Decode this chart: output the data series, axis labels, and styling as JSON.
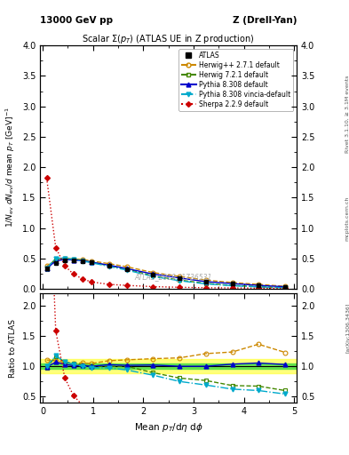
{
  "title_left": "13000 GeV pp",
  "title_right": "Z (Drell-Yan)",
  "plot_title": "Scalar Σ(p_T) (ATLAS UE in Z production)",
  "ylabel_main": "1/N_{ev} dN_{ev}/d mean p_T [GeV]^{-1}",
  "ylabel_ratio": "Ratio to ATLAS",
  "xlabel": "Mean p_T/dη dφ",
  "watermark": "ATLAS_2019_I1736531",
  "right_label1": "Rivet 3.1.10, ≥ 3.1M events",
  "right_label2": "[arXiv:1306.3436]",
  "right_label3": "mcplots.cern.ch",
  "x_atlas": [
    0.08,
    0.26,
    0.44,
    0.61,
    0.79,
    0.97,
    1.32,
    1.67,
    2.19,
    2.72,
    3.24,
    3.77,
    4.29,
    4.82
  ],
  "y_atlas": [
    0.34,
    0.43,
    0.47,
    0.47,
    0.46,
    0.44,
    0.38,
    0.33,
    0.24,
    0.18,
    0.12,
    0.085,
    0.055,
    0.035
  ],
  "y_atlas_err": [
    0.02,
    0.02,
    0.02,
    0.02,
    0.015,
    0.015,
    0.015,
    0.013,
    0.01,
    0.008,
    0.006,
    0.004,
    0.003,
    0.002
  ],
  "x_herwig271": [
    0.08,
    0.26,
    0.44,
    0.61,
    0.79,
    0.97,
    1.32,
    1.67,
    2.19,
    2.72,
    3.24,
    3.77,
    4.29,
    4.82
  ],
  "y_herwig271": [
    0.375,
    0.47,
    0.5,
    0.49,
    0.485,
    0.46,
    0.415,
    0.365,
    0.27,
    0.205,
    0.145,
    0.105,
    0.075,
    0.043
  ],
  "x_herwig721": [
    0.08,
    0.26,
    0.44,
    0.61,
    0.79,
    0.97,
    1.32,
    1.67,
    2.19,
    2.72,
    3.24,
    3.77,
    4.29,
    4.82
  ],
  "y_herwig721": [
    0.33,
    0.5,
    0.505,
    0.49,
    0.47,
    0.44,
    0.38,
    0.33,
    0.215,
    0.145,
    0.092,
    0.058,
    0.037,
    0.021
  ],
  "x_pythia8308": [
    0.08,
    0.26,
    0.44,
    0.61,
    0.79,
    0.97,
    1.32,
    1.67,
    2.19,
    2.72,
    3.24,
    3.77,
    4.29,
    4.82
  ],
  "y_pythia8308": [
    0.335,
    0.46,
    0.485,
    0.475,
    0.465,
    0.44,
    0.39,
    0.335,
    0.245,
    0.18,
    0.12,
    0.088,
    0.058,
    0.036
  ],
  "x_pythia8308v": [
    0.08,
    0.26,
    0.44,
    0.61,
    0.79,
    0.97,
    1.32,
    1.67,
    2.19,
    2.72,
    3.24,
    3.77,
    4.29,
    4.82
  ],
  "y_pythia8308v": [
    0.34,
    0.505,
    0.505,
    0.485,
    0.46,
    0.43,
    0.37,
    0.31,
    0.205,
    0.135,
    0.083,
    0.053,
    0.033,
    0.019
  ],
  "x_sherpa229": [
    0.08,
    0.26,
    0.44,
    0.61,
    0.79,
    0.97,
    1.32,
    1.67,
    2.19,
    2.72,
    3.24,
    3.77,
    4.29,
    4.82
  ],
  "y_sherpa229": [
    1.82,
    0.68,
    0.38,
    0.245,
    0.165,
    0.115,
    0.075,
    0.058,
    0.038,
    0.027,
    0.019,
    0.016,
    0.012,
    0.01
  ],
  "ylim_main": [
    0.0,
    4.0
  ],
  "ylim_ratio": [
    0.4,
    2.2
  ],
  "color_atlas": "#000000",
  "color_herwig271": "#cc8800",
  "color_herwig721": "#448800",
  "color_pythia8308": "#0000cc",
  "color_pythia8308v": "#00aacc",
  "color_sherpa229": "#cc0000",
  "band_green_inner": [
    0.96,
    1.04
  ],
  "band_yellow_outer": [
    0.88,
    1.12
  ]
}
